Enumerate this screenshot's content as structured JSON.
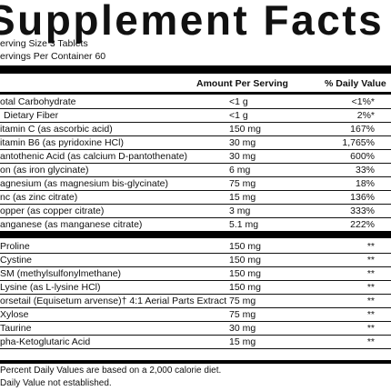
{
  "title": "Supplement Facts",
  "serving": {
    "size": "erving Size  3 Tablets",
    "per_container": "ervings Per Container 60"
  },
  "header": {
    "amount": "Amount Per Serving",
    "dv": "% Daily Value"
  },
  "rows_top": [
    {
      "name": "otal Carbohydrate",
      "amount": "<1 g",
      "dv": "<1%*"
    },
    {
      "name": "Dietary Fiber",
      "amount": "<1 g",
      "dv": "2%*"
    },
    {
      "name": "itamin C (as ascorbic acid)",
      "amount": "150 mg",
      "dv": "167%"
    },
    {
      "name": "itamin B6 (as pyridoxine HCl)",
      "amount": "30 mg",
      "dv": "1,765%"
    },
    {
      "name": "antothenic Acid (as calcium D-pantothenate)",
      "amount": "30 mg",
      "dv": "600%"
    },
    {
      "name": "on (as iron glycinate)",
      "amount": "6 mg",
      "dv": "33%"
    },
    {
      "name": "agnesium (as magnesium bis-glycinate)",
      "amount": "75 mg",
      "dv": "18%"
    },
    {
      "name": "nc (as zinc citrate)",
      "amount": "15 mg",
      "dv": "136%"
    },
    {
      "name": "opper (as copper citrate)",
      "amount": "3 mg",
      "dv": "333%"
    },
    {
      "name": "anganese (as manganese citrate)",
      "amount": "5.1 mg",
      "dv": "222%"
    }
  ],
  "rows_bottom": [
    {
      "name": "Proline",
      "amount": "150 mg",
      "dv": "**"
    },
    {
      "name": "Cystine",
      "amount": "150 mg",
      "dv": "**"
    },
    {
      "name": "SM (methylsulfonylmethane)",
      "amount": "150 mg",
      "dv": "**"
    },
    {
      "name": "Lysine (as L-lysine HCl)",
      "amount": "150 mg",
      "dv": "**"
    },
    {
      "name": "orsetail (Equisetum arvense)† 4:1 Aerial Parts Extract",
      "amount": "75 mg",
      "dv": "**"
    },
    {
      "name": "Xylose",
      "amount": "75 mg",
      "dv": "**"
    },
    {
      "name": "Taurine",
      "amount": "30 mg",
      "dv": "**"
    },
    {
      "name": "pha-Ketoglutaric Acid",
      "amount": "15 mg",
      "dv": "**"
    }
  ],
  "footnotes": [
    "Percent Daily Values are based on a 2,000 calorie diet.",
    "Daily Value not established."
  ]
}
